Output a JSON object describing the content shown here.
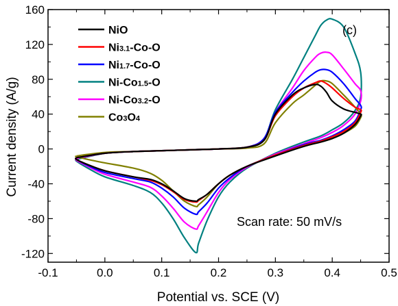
{
  "chart_data": {
    "type": "line",
    "panel_label": "(c)",
    "xlabel": "Potential vs. SCE (V)",
    "ylabel": "Current density (A/g)",
    "xlim": [
      -0.1,
      0.5
    ],
    "ylim": [
      -130,
      160
    ],
    "xticks": [
      "-0.1",
      "0.0",
      "0.1",
      "0.2",
      "0.3",
      "0.4",
      "0.5"
    ],
    "yticks": [
      "-120",
      "-80",
      "-40",
      "0",
      "40",
      "80",
      "120",
      "160"
    ],
    "xtick_values": [
      -0.1,
      0.0,
      0.1,
      0.2,
      0.3,
      0.4,
      0.5
    ],
    "ytick_values": [
      -120,
      -80,
      -40,
      0,
      40,
      80,
      120,
      160
    ],
    "annotation": "Scan rate: 50 mV/s",
    "legend_position": "top-left",
    "series": [
      {
        "name": "NiO",
        "label_parts": [
          [
            "NiO",
            false
          ]
        ],
        "color": "#000000",
        "x": [
          -0.05,
          0.0,
          0.05,
          0.1,
          0.15,
          0.2,
          0.25,
          0.28,
          0.3,
          0.33,
          0.35,
          0.37,
          0.38,
          0.39,
          0.4,
          0.42,
          0.44,
          0.45,
          0.45,
          0.44,
          0.42,
          0.4,
          0.38,
          0.35,
          0.3,
          0.25,
          0.22,
          0.2,
          0.18,
          0.165,
          0.16,
          0.14,
          0.12,
          0.1,
          0.08,
          0.05,
          0.0,
          -0.03,
          -0.05
        ],
        "y": [
          -10,
          -5,
          -3,
          -2,
          -1,
          0,
          2,
          10,
          40,
          62,
          70,
          74,
          72,
          65,
          55,
          46,
          42,
          40,
          38,
          28,
          18,
          12,
          8,
          3,
          -8,
          -20,
          -30,
          -40,
          -52,
          -58,
          -60,
          -57,
          -48,
          -40,
          -35,
          -32,
          -25,
          -18,
          -12
        ]
      },
      {
        "name": "Ni3.1-Co-O",
        "label_parts": [
          [
            "Ni",
            false
          ],
          [
            "3.1",
            true
          ],
          [
            "-Co-O",
            false
          ]
        ],
        "color": "#ff0000",
        "x": [
          -0.05,
          0.0,
          0.05,
          0.1,
          0.15,
          0.2,
          0.25,
          0.28,
          0.3,
          0.33,
          0.35,
          0.37,
          0.38,
          0.39,
          0.4,
          0.42,
          0.44,
          0.45,
          0.45,
          0.44,
          0.42,
          0.4,
          0.38,
          0.35,
          0.3,
          0.25,
          0.22,
          0.2,
          0.18,
          0.165,
          0.16,
          0.14,
          0.12,
          0.1,
          0.08,
          0.05,
          0.0,
          -0.03,
          -0.05
        ],
        "y": [
          -10,
          -5,
          -3,
          -2,
          -1,
          0,
          2,
          10,
          38,
          60,
          70,
          76,
          78,
          75,
          70,
          58,
          48,
          45,
          42,
          30,
          20,
          14,
          9,
          4,
          -7,
          -20,
          -30,
          -40,
          -52,
          -59,
          -61,
          -58,
          -49,
          -41,
          -36,
          -32,
          -25,
          -18,
          -12
        ]
      },
      {
        "name": "Ni1.7-Co-O",
        "label_parts": [
          [
            "Ni",
            false
          ],
          [
            "1.7",
            true
          ],
          [
            "-Co-O",
            false
          ]
        ],
        "color": "#0000ff",
        "x": [
          -0.05,
          0.0,
          0.05,
          0.1,
          0.15,
          0.2,
          0.25,
          0.28,
          0.3,
          0.33,
          0.35,
          0.37,
          0.38,
          0.39,
          0.4,
          0.42,
          0.44,
          0.45,
          0.45,
          0.44,
          0.42,
          0.4,
          0.38,
          0.35,
          0.3,
          0.25,
          0.22,
          0.2,
          0.18,
          0.165,
          0.16,
          0.14,
          0.12,
          0.1,
          0.08,
          0.05,
          0.0,
          -0.03,
          -0.05
        ],
        "y": [
          -10,
          -5,
          -3,
          -2,
          -1,
          0,
          2,
          12,
          42,
          65,
          78,
          88,
          91,
          91,
          88,
          75,
          58,
          50,
          45,
          32,
          22,
          15,
          10,
          5,
          -7,
          -20,
          -33,
          -45,
          -62,
          -72,
          -75,
          -68,
          -55,
          -45,
          -38,
          -34,
          -27,
          -19,
          -12
        ]
      },
      {
        "name": "Ni-Co1.5-O",
        "label_parts": [
          [
            "Ni-Co",
            false
          ],
          [
            "1.5",
            true
          ],
          [
            "-O",
            false
          ]
        ],
        "color": "#008080",
        "x": [
          -0.05,
          0.0,
          0.05,
          0.1,
          0.15,
          0.2,
          0.25,
          0.28,
          0.3,
          0.33,
          0.35,
          0.37,
          0.38,
          0.39,
          0.4,
          0.42,
          0.44,
          0.45,
          0.45,
          0.44,
          0.42,
          0.4,
          0.38,
          0.35,
          0.3,
          0.25,
          0.22,
          0.2,
          0.18,
          0.165,
          0.16,
          0.14,
          0.12,
          0.1,
          0.08,
          0.05,
          0.0,
          -0.03,
          -0.05
        ],
        "y": [
          -12,
          -5,
          -3,
          -2,
          -1,
          0,
          2,
          12,
          45,
          80,
          105,
          130,
          142,
          148,
          149,
          140,
          110,
          88,
          60,
          44,
          30,
          22,
          15,
          8,
          -5,
          -22,
          -38,
          -55,
          -82,
          -108,
          -119,
          -102,
          -80,
          -62,
          -50,
          -42,
          -32,
          -22,
          -14
        ]
      },
      {
        "name": "Ni-Co3.2-O",
        "label_parts": [
          [
            "Ni-Co",
            false
          ],
          [
            "3.2",
            true
          ],
          [
            "-O",
            false
          ]
        ],
        "color": "#ff00ff",
        "x": [
          -0.05,
          0.0,
          0.05,
          0.1,
          0.15,
          0.2,
          0.25,
          0.28,
          0.3,
          0.33,
          0.35,
          0.37,
          0.38,
          0.39,
          0.4,
          0.42,
          0.44,
          0.45,
          0.45,
          0.44,
          0.42,
          0.4,
          0.38,
          0.35,
          0.3,
          0.25,
          0.22,
          0.2,
          0.18,
          0.165,
          0.16,
          0.14,
          0.12,
          0.1,
          0.08,
          0.05,
          0.0,
          -0.03,
          -0.05
        ],
        "y": [
          -11,
          -5,
          -3,
          -2,
          -1,
          0,
          2,
          12,
          42,
          70,
          90,
          105,
          110,
          111,
          108,
          92,
          75,
          67,
          55,
          40,
          27,
          19,
          13,
          6,
          -6,
          -21,
          -35,
          -50,
          -72,
          -88,
          -92,
          -84,
          -68,
          -54,
          -44,
          -38,
          -29,
          -20,
          -13
        ]
      },
      {
        "name": "Co3O4",
        "label_parts": [
          [
            "Co",
            false
          ],
          [
            "3",
            true
          ],
          [
            "O",
            false
          ],
          [
            "4",
            true
          ]
        ],
        "color": "#808000",
        "x": [
          -0.05,
          0.0,
          0.05,
          0.1,
          0.15,
          0.2,
          0.25,
          0.28,
          0.3,
          0.33,
          0.35,
          0.37,
          0.38,
          0.39,
          0.4,
          0.42,
          0.44,
          0.45,
          0.45,
          0.44,
          0.42,
          0.4,
          0.38,
          0.35,
          0.3,
          0.25,
          0.22,
          0.2,
          0.18,
          0.165,
          0.16,
          0.14,
          0.12,
          0.1,
          0.08,
          0.05,
          0.0,
          -0.03,
          -0.05
        ],
        "y": [
          -8,
          -4,
          -3,
          -2,
          -1,
          0,
          1,
          6,
          30,
          52,
          62,
          73,
          78,
          78,
          75,
          62,
          48,
          40,
          36,
          26,
          18,
          12,
          8,
          3,
          -7,
          -20,
          -30,
          -40,
          -55,
          -64,
          -66,
          -60,
          -48,
          -36,
          -28,
          -22,
          -16,
          -12,
          -9
        ]
      }
    ]
  }
}
